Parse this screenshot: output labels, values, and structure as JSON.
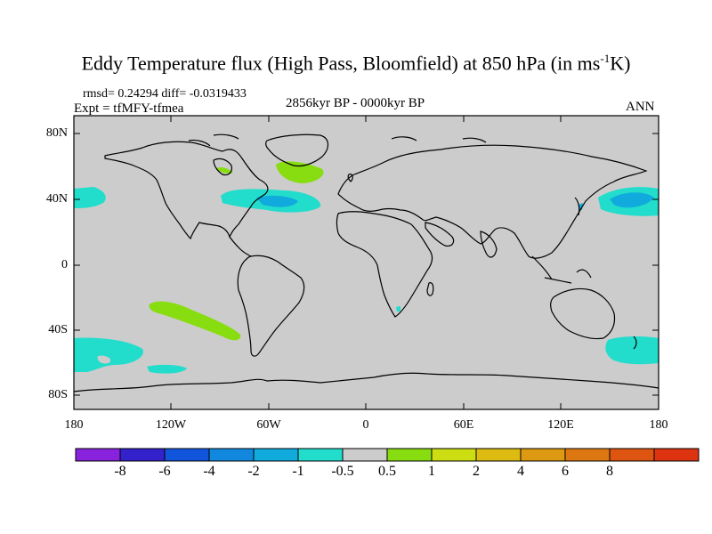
{
  "title": {
    "main": "Eddy Temperature flux (High Pass, Bloomfield) at 850 hPa (in ms",
    "sup": "-1",
    "end": "K)"
  },
  "stats": "rmsd= 0.24294  diff= -0.0319433",
  "experiment": "Expt = tfMFY-tfmea",
  "period": "2856kyr BP - 0000kyr BP",
  "season": "ANN",
  "colors": {
    "land": "#cccccc",
    "green": "#88dd11",
    "cyan": "#22ddcc",
    "blue": "#11aadd"
  },
  "lat_labels": [
    "80N",
    "40N",
    "0",
    "40S",
    "80S"
  ],
  "lon_labels": [
    "180",
    "120W",
    "60W",
    "0",
    "60E",
    "120E",
    "180"
  ],
  "colorbar": {
    "colors": [
      "#8822dd",
      "#3322cc",
      "#1155dd",
      "#1188dd",
      "#11aadd",
      "#22ddcc",
      "#cccccc",
      "#88dd11",
      "#ccdd11",
      "#ddbb11",
      "#dd9911",
      "#dd7711",
      "#dd5511",
      "#dd3311"
    ],
    "labels": [
      "-8",
      "-6",
      "-4",
      "-2",
      "-1",
      "-0.5",
      "0.5",
      "1",
      "2",
      "4",
      "6",
      "8"
    ]
  }
}
